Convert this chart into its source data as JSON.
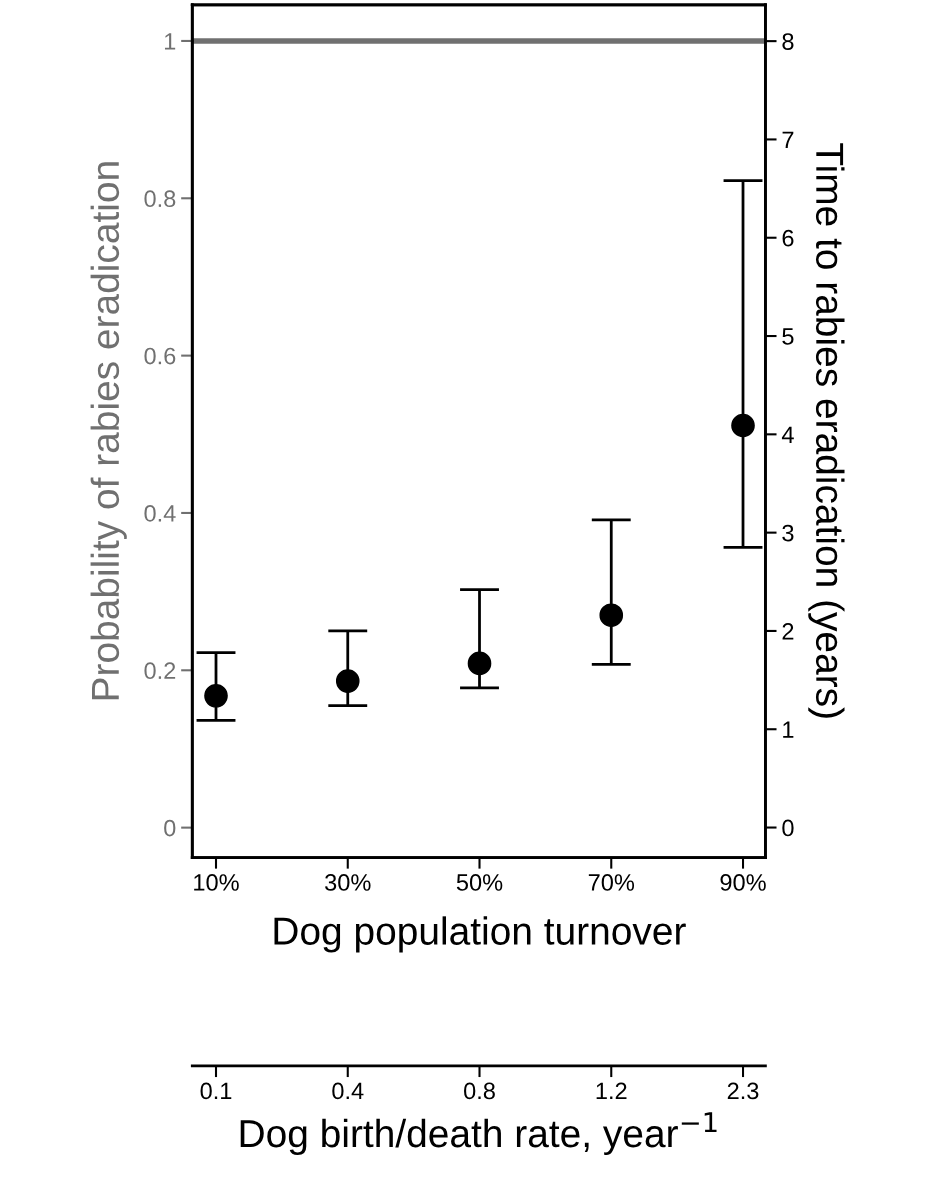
{
  "chart_data": [
    {
      "type": "scatter",
      "xlabel": "Dog population turnover",
      "ylabel": "Probability of rabies eradication",
      "y2label": "Time to rabies eradication (years)",
      "categories": [
        "10%",
        "30%",
        "50%",
        "70%",
        "90%"
      ],
      "ylim": [
        -0.038,
        1.046
      ],
      "yticks": [
        0,
        0.2,
        0.4,
        0.6,
        0.8,
        1
      ],
      "y2lim": [
        -0.305,
        8.37
      ],
      "y2ticks": [
        0,
        1,
        2,
        3,
        4,
        5,
        6,
        7,
        8
      ],
      "ref_lines": [
        {
          "axis": "y",
          "value": 1,
          "label": null,
          "color": "#707070"
        }
      ],
      "series": [
        {
          "color": "#000000",
          "axis": "y2",
          "values": [
            1.34,
            1.49,
            1.67,
            2.16,
            4.09
          ],
          "errors": [
            [
              1.09,
              1.78
            ],
            [
              1.24,
              2.0
            ],
            [
              1.42,
              2.42
            ],
            [
              1.66,
              3.13
            ],
            [
              2.85,
              6.58
            ]
          ]
        }
      ],
      "marker": "circle",
      "grid": false,
      "legend": false
    },
    {
      "type": "other",
      "categories": [
        "0.1",
        "0.4",
        "0.8",
        "1.2",
        "2.3"
      ],
      "xlabel": "Dog birth/death rate, year$^{−1}$"
    }
  ]
}
